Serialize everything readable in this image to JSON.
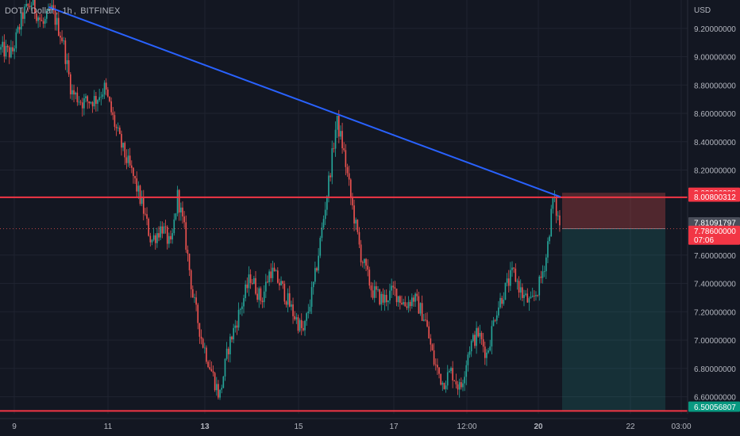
{
  "header": {
    "symbol": "DOT / Dollar",
    "interval": "1h",
    "exchange": "BITFINEX",
    "currency": "USD"
  },
  "colors": {
    "background": "#131722",
    "grid": "#1f2330",
    "up": "#26a69a",
    "down": "#ef5350",
    "trendline": "#2962ff",
    "level_line": "#f23645",
    "axis_text": "#b2b5be",
    "stop_zone": "#5a2430",
    "target_zone": "#14393a"
  },
  "chart_data": {
    "type": "candlestick",
    "title": "DOT / Dollar, 1h, BITFINEX",
    "y_axis_label": "USD",
    "ylim": [
      6.48,
      9.4
    ],
    "y_ticks": [
      "9.20000000",
      "9.00000000",
      "8.80000000",
      "8.60000000",
      "8.40000000",
      "8.20000000",
      "7.60000000",
      "7.40000000",
      "7.20000000",
      "7.00000000",
      "6.80000000",
      "6.60000000"
    ],
    "x_tick_labels": [
      "9",
      "11",
      "13",
      "15",
      "17",
      "12:00",
      "20",
      "22",
      "03:00"
    ],
    "bold_x_ticks": [
      "13",
      "20"
    ],
    "price_path": [
      {
        "t": 0,
        "p": 9.05
      },
      {
        "t": 0.5,
        "p": 9.02
      },
      {
        "t": 1.0,
        "p": 9.3
      },
      {
        "t": 1.4,
        "p": 9.38
      },
      {
        "t": 1.9,
        "p": 9.22
      },
      {
        "t": 2.3,
        "p": 9.33
      },
      {
        "t": 2.8,
        "p": 9.12
      },
      {
        "t": 3.2,
        "p": 8.75
      },
      {
        "t": 3.7,
        "p": 8.68
      },
      {
        "t": 4.3,
        "p": 8.7
      },
      {
        "t": 4.7,
        "p": 8.78
      },
      {
        "t": 5.1,
        "p": 8.55
      },
      {
        "t": 5.5,
        "p": 8.35
      },
      {
        "t": 6.0,
        "p": 8.15
      },
      {
        "t": 6.4,
        "p": 7.95
      },
      {
        "t": 6.8,
        "p": 7.7
      },
      {
        "t": 7.3,
        "p": 7.8
      },
      {
        "t": 7.7,
        "p": 7.65
      },
      {
        "t": 8.0,
        "p": 8.02
      },
      {
        "t": 8.3,
        "p": 7.78
      },
      {
        "t": 8.7,
        "p": 7.3
      },
      {
        "t": 9.1,
        "p": 7.0
      },
      {
        "t": 9.5,
        "p": 6.8
      },
      {
        "t": 9.9,
        "p": 6.6
      },
      {
        "t": 10.3,
        "p": 6.95
      },
      {
        "t": 10.8,
        "p": 7.2
      },
      {
        "t": 11.3,
        "p": 7.45
      },
      {
        "t": 11.8,
        "p": 7.28
      },
      {
        "t": 12.2,
        "p": 7.5
      },
      {
        "t": 12.7,
        "p": 7.38
      },
      {
        "t": 13.2,
        "p": 7.2
      },
      {
        "t": 13.7,
        "p": 7.05
      },
      {
        "t": 14.2,
        "p": 7.42
      },
      {
        "t": 14.6,
        "p": 7.85
      },
      {
        "t": 15.0,
        "p": 8.3
      },
      {
        "t": 15.2,
        "p": 8.55
      },
      {
        "t": 15.5,
        "p": 8.35
      },
      {
        "t": 15.9,
        "p": 7.95
      },
      {
        "t": 16.3,
        "p": 7.6
      },
      {
        "t": 16.8,
        "p": 7.35
      },
      {
        "t": 17.3,
        "p": 7.28
      },
      {
        "t": 17.8,
        "p": 7.35
      },
      {
        "t": 18.3,
        "p": 7.25
      },
      {
        "t": 18.7,
        "p": 7.3
      },
      {
        "t": 19.2,
        "p": 7.15
      },
      {
        "t": 19.6,
        "p": 6.85
      },
      {
        "t": 20.0,
        "p": 6.7
      },
      {
        "t": 20.4,
        "p": 6.78
      },
      {
        "t": 20.8,
        "p": 6.65
      },
      {
        "t": 21.2,
        "p": 6.95
      },
      {
        "t": 21.6,
        "p": 7.05
      },
      {
        "t": 22.0,
        "p": 6.9
      },
      {
        "t": 22.4,
        "p": 7.2
      },
      {
        "t": 22.8,
        "p": 7.35
      },
      {
        "t": 23.2,
        "p": 7.48
      },
      {
        "t": 23.6,
        "p": 7.32
      },
      {
        "t": 24.0,
        "p": 7.25
      },
      {
        "t": 24.4,
        "p": 7.4
      },
      {
        "t": 24.7,
        "p": 7.6
      },
      {
        "t": 25.0,
        "p": 8.0
      },
      {
        "t": 25.3,
        "p": 7.81
      }
    ],
    "levels": [
      {
        "name": "resistance",
        "price": 8.00800312,
        "label": "8.00800312"
      },
      {
        "name": "support",
        "price": 6.50056807,
        "label": "6.50056807"
      },
      {
        "name": "stop",
        "price": 8.03996288,
        "label": "8.03996288"
      },
      {
        "name": "last_price",
        "price": 7.81091797,
        "label": "7.81091797"
      },
      {
        "name": "entry",
        "price": 7.786,
        "label": "7.78600000",
        "countdown": "07:06"
      }
    ],
    "trendline": {
      "start": {
        "t": 2.2,
        "p": 9.35
      },
      "end": {
        "t": 25.3,
        "p": 8.01
      }
    },
    "position_tool": {
      "type": "short",
      "entry": 7.786,
      "stop": 8.03996288,
      "target": 6.50056807
    }
  }
}
